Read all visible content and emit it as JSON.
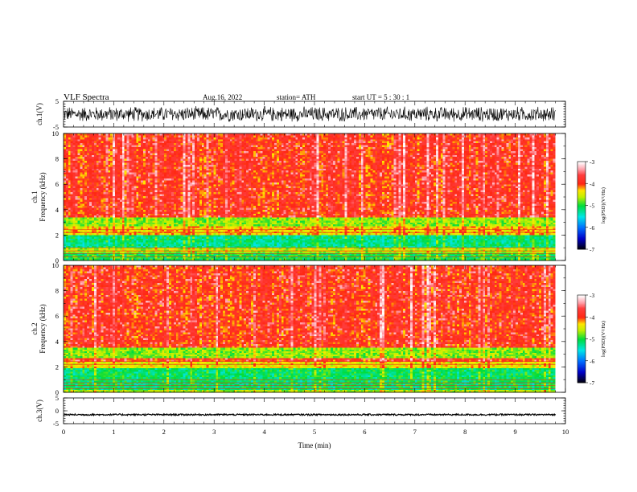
{
  "header": {
    "title": "VLF  Spectra",
    "date": "Aug.16, 2022",
    "station": "station= ATH",
    "start_ut": "start  UT  =    5  : 30 : 1"
  },
  "chart_data": [
    {
      "id": "ch1_waveform",
      "type": "line",
      "ylabel": "ch.1(V)",
      "ylim": [
        -5,
        5
      ],
      "yticks": [
        "5",
        "-5"
      ],
      "xlim": [
        0,
        10
      ],
      "signal": "noise",
      "amplitude_v": 2.5,
      "color": "#000000"
    },
    {
      "id": "ch1_spectrogram",
      "type": "heatmap",
      "ylabel_top": "ch.1",
      "ylabel": "Frequency  (kHz)",
      "ylim": [
        0,
        10
      ],
      "yticks": [
        "0",
        "2",
        "4",
        "6",
        "8",
        "10"
      ],
      "xlim": [
        0,
        10
      ],
      "x_data_end_min": 9.8,
      "bands": [
        {
          "f_low": 2.3,
          "f_high": 10.0,
          "log_psd": -3.9
        },
        {
          "f_low": 2.7,
          "f_high": 3.4,
          "log_psd": -4.7
        },
        {
          "f_low": 2.0,
          "f_high": 2.7,
          "log_psd": -4.3
        },
        {
          "f_low": 1.0,
          "f_high": 2.0,
          "log_psd": -5.2
        },
        {
          "f_low": 0.6,
          "f_high": 1.0,
          "log_psd": -4.6
        },
        {
          "f_low": 0.0,
          "f_high": 0.6,
          "log_psd": -5.0
        }
      ],
      "colorbar": {
        "label": "log(PSD)(V²/Hz)",
        "range": [
          -7,
          -3
        ],
        "ticks": [
          "-3",
          "-4",
          "-5",
          "-6",
          "-7"
        ]
      }
    },
    {
      "id": "ch2_spectrogram",
      "type": "heatmap",
      "ylabel_top": "ch.2",
      "ylabel": "Frequency  (kHz)",
      "ylim": [
        0,
        10
      ],
      "yticks": [
        "0",
        "2",
        "4",
        "6",
        "8",
        "10"
      ],
      "xlim": [
        0,
        10
      ],
      "x_data_end_min": 9.8,
      "bands": [
        {
          "f_low": 2.4,
          "f_high": 10.0,
          "log_psd": -3.9
        },
        {
          "f_low": 2.7,
          "f_high": 3.5,
          "log_psd": -4.7
        },
        {
          "f_low": 1.9,
          "f_high": 2.4,
          "log_psd": -4.4
        },
        {
          "f_low": 0.2,
          "f_high": 1.9,
          "log_psd": -5.1
        },
        {
          "f_low": 0.0,
          "f_high": 0.2,
          "log_psd": -4.6
        }
      ],
      "colorbar": {
        "label": "log(PSD)(V²/Hz)",
        "range": [
          -7,
          -3
        ],
        "ticks": [
          "-3",
          "-4",
          "-5",
          "-6",
          "-7"
        ]
      }
    },
    {
      "id": "ch3_waveform",
      "type": "line",
      "ylabel": "ch.3(V)",
      "ylim": [
        -5,
        5
      ],
      "yticks": [
        "5",
        "0",
        "-5"
      ],
      "xlim": [
        0,
        10
      ],
      "signal": "flat",
      "level_v": -1.5,
      "amplitude_v": 0.3,
      "color": "#000000",
      "xlabel": "Time  (min)",
      "xticks": [
        "0",
        "1",
        "2",
        "3",
        "4",
        "5",
        "6",
        "7",
        "8",
        "9",
        "10"
      ]
    }
  ]
}
